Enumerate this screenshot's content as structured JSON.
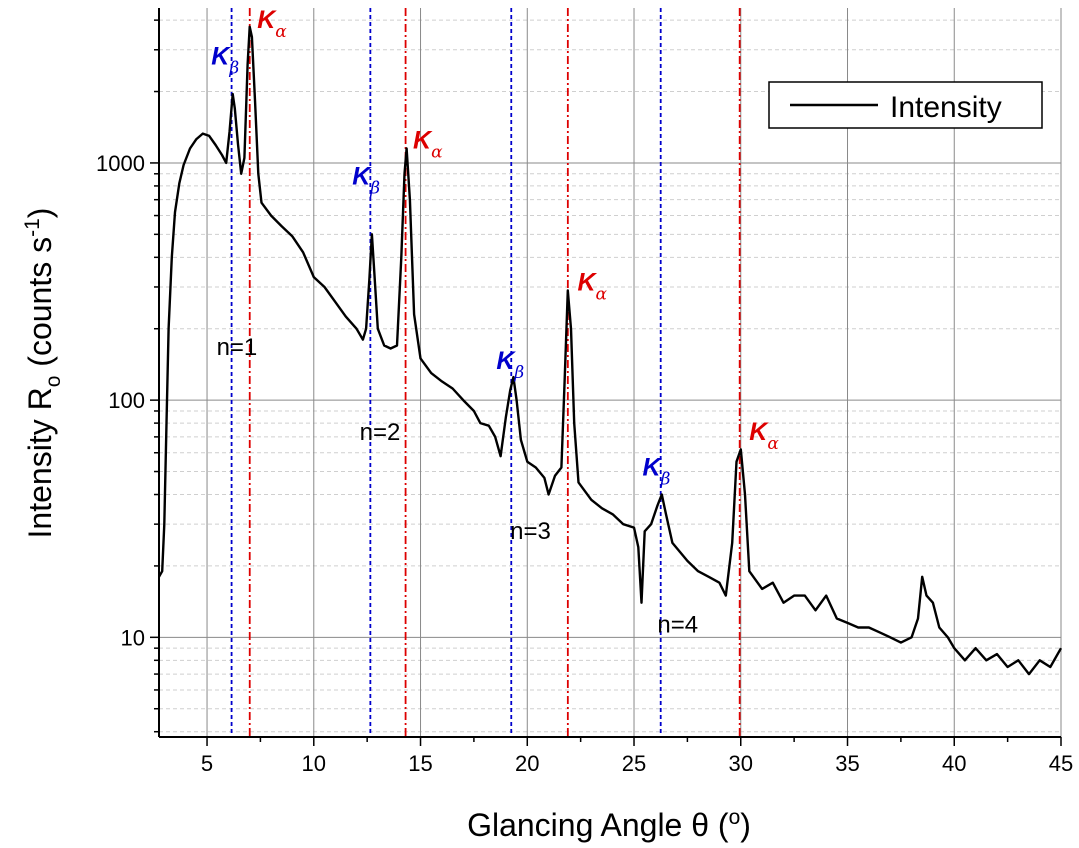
{
  "chart_data": {
    "type": "line",
    "xlabel_main": "Glancing Angle θ (",
    "xlabel_sup": "o",
    "xlabel_end": ")",
    "ylabel_main": "Intensity R",
    "ylabel_sub": "o",
    "ylabel_units": " (counts s",
    "ylabel_sup": "-1",
    "ylabel_end": ")",
    "x_ticks": [
      5,
      10,
      15,
      20,
      25,
      30,
      35,
      40,
      45
    ],
    "x_tick_labels": [
      "5",
      "10",
      "15",
      "20",
      "25",
      "30",
      "35",
      "40",
      "45"
    ],
    "y_ticks": [
      10,
      100,
      1000
    ],
    "y_tick_labels": [
      "10",
      "100",
      "1000"
    ],
    "xlim": [
      2.75,
      45
    ],
    "ylim": [
      3.8,
      4500
    ],
    "y_scale": "log",
    "grid": true,
    "legend": {
      "position": "top-right",
      "entries": [
        "Intensity"
      ]
    },
    "series": [
      {
        "name": "Intensity",
        "color": "#000000",
        "points": [
          [
            2.75,
            18
          ],
          [
            2.9,
            19
          ],
          [
            3.0,
            30
          ],
          [
            3.1,
            80
          ],
          [
            3.2,
            200
          ],
          [
            3.35,
            400
          ],
          [
            3.5,
            620
          ],
          [
            3.7,
            820
          ],
          [
            3.9,
            980
          ],
          [
            4.2,
            1150
          ],
          [
            4.5,
            1260
          ],
          [
            4.8,
            1330
          ],
          [
            5.1,
            1300
          ],
          [
            5.4,
            1190
          ],
          [
            5.7,
            1080
          ],
          [
            5.9,
            1000
          ],
          [
            6.05,
            1350
          ],
          [
            6.2,
            1950
          ],
          [
            6.3,
            1700
          ],
          [
            6.45,
            1200
          ],
          [
            6.6,
            900
          ],
          [
            6.75,
            1050
          ],
          [
            6.9,
            2600
          ],
          [
            7.0,
            3750
          ],
          [
            7.1,
            3400
          ],
          [
            7.25,
            1800
          ],
          [
            7.4,
            900
          ],
          [
            7.55,
            680
          ],
          [
            8.0,
            600
          ],
          [
            8.5,
            540
          ],
          [
            9.0,
            490
          ],
          [
            9.5,
            420
          ],
          [
            10.0,
            330
          ],
          [
            10.5,
            300
          ],
          [
            11.0,
            260
          ],
          [
            11.5,
            225
          ],
          [
            12.0,
            200
          ],
          [
            12.3,
            180
          ],
          [
            12.45,
            200
          ],
          [
            12.6,
            320
          ],
          [
            12.72,
            500
          ],
          [
            12.85,
            330
          ],
          [
            13.0,
            200
          ],
          [
            13.3,
            170
          ],
          [
            13.6,
            165
          ],
          [
            13.9,
            170
          ],
          [
            14.1,
            400
          ],
          [
            14.25,
            900
          ],
          [
            14.35,
            1150
          ],
          [
            14.5,
            700
          ],
          [
            14.7,
            230
          ],
          [
            15.0,
            150
          ],
          [
            15.5,
            130
          ],
          [
            16.0,
            120
          ],
          [
            16.5,
            112
          ],
          [
            17.0,
            100
          ],
          [
            17.5,
            90
          ],
          [
            17.8,
            80
          ],
          [
            18.2,
            78
          ],
          [
            18.5,
            70
          ],
          [
            18.75,
            58
          ],
          [
            19.0,
            85
          ],
          [
            19.2,
            110
          ],
          [
            19.35,
            125
          ],
          [
            19.5,
            100
          ],
          [
            19.7,
            68
          ],
          [
            20.0,
            55
          ],
          [
            20.4,
            52
          ],
          [
            20.8,
            47
          ],
          [
            21.0,
            40
          ],
          [
            21.3,
            48
          ],
          [
            21.6,
            52
          ],
          [
            21.75,
            120
          ],
          [
            21.9,
            290
          ],
          [
            22.05,
            200
          ],
          [
            22.2,
            80
          ],
          [
            22.4,
            45
          ],
          [
            23.0,
            38
          ],
          [
            23.5,
            35
          ],
          [
            24.0,
            33
          ],
          [
            24.5,
            30
          ],
          [
            25.0,
            29
          ],
          [
            25.2,
            24
          ],
          [
            25.35,
            14
          ],
          [
            25.5,
            28
          ],
          [
            25.8,
            30
          ],
          [
            26.1,
            36
          ],
          [
            26.3,
            40
          ],
          [
            26.5,
            33
          ],
          [
            26.8,
            25
          ],
          [
            27.5,
            21
          ],
          [
            28.0,
            19
          ],
          [
            28.5,
            18
          ],
          [
            29.0,
            17
          ],
          [
            29.3,
            15
          ],
          [
            29.6,
            25
          ],
          [
            29.8,
            55
          ],
          [
            30.0,
            62
          ],
          [
            30.2,
            40
          ],
          [
            30.4,
            19
          ],
          [
            31.0,
            16
          ],
          [
            31.5,
            17
          ],
          [
            32.0,
            14
          ],
          [
            32.5,
            15
          ],
          [
            33.0,
            15
          ],
          [
            33.5,
            13
          ],
          [
            34.0,
            15
          ],
          [
            34.5,
            12
          ],
          [
            35.0,
            11.5
          ],
          [
            35.5,
            11
          ],
          [
            36.0,
            11
          ],
          [
            36.5,
            10.5
          ],
          [
            37.0,
            10
          ],
          [
            37.5,
            9.5
          ],
          [
            38.0,
            10
          ],
          [
            38.3,
            12
          ],
          [
            38.5,
            18
          ],
          [
            38.7,
            15
          ],
          [
            39.0,
            14
          ],
          [
            39.3,
            11
          ],
          [
            39.7,
            10
          ],
          [
            40.0,
            9
          ],
          [
            40.5,
            8
          ],
          [
            41.0,
            9
          ],
          [
            41.5,
            8
          ],
          [
            42.0,
            8.5
          ],
          [
            42.5,
            7.5
          ],
          [
            43.0,
            8
          ],
          [
            43.5,
            7
          ],
          [
            44.0,
            8
          ],
          [
            44.5,
            7.5
          ],
          [
            45.0,
            9
          ]
        ]
      }
    ],
    "reference_lines": [
      {
        "kind": "beta",
        "x": 6.15,
        "color": "#0000cc"
      },
      {
        "kind": "alpha",
        "x": 7.0,
        "color": "#dd0000"
      },
      {
        "kind": "beta",
        "x": 12.65,
        "color": "#0000cc"
      },
      {
        "kind": "alpha",
        "x": 14.3,
        "color": "#dd0000"
      },
      {
        "kind": "beta",
        "x": 19.25,
        "color": "#0000cc"
      },
      {
        "kind": "alpha",
        "x": 21.9,
        "color": "#dd0000"
      },
      {
        "kind": "beta",
        "x": 26.25,
        "color": "#0000cc"
      },
      {
        "kind": "alpha",
        "x": 29.95,
        "color": "#dd0000"
      }
    ],
    "peak_labels": [
      {
        "main": "K",
        "sub": "β",
        "color": "#0000cc",
        "x": 5.2,
        "y": 2600
      },
      {
        "main": "K",
        "sub": "α",
        "color": "#dd0000",
        "x": 7.35,
        "y": 3700
      },
      {
        "main": "K",
        "sub": "β",
        "color": "#0000cc",
        "x": 11.8,
        "y": 810
      },
      {
        "main": "K",
        "sub": "α",
        "color": "#dd0000",
        "x": 14.65,
        "y": 1150
      },
      {
        "main": "K",
        "sub": "β",
        "color": "#0000cc",
        "x": 18.55,
        "y": 135
      },
      {
        "main": "K",
        "sub": "α",
        "color": "#dd0000",
        "x": 22.35,
        "y": 290
      },
      {
        "main": "K",
        "sub": "β",
        "color": "#0000cc",
        "x": 25.4,
        "y": 48
      },
      {
        "main": "K",
        "sub": "α",
        "color": "#dd0000",
        "x": 30.4,
        "y": 68
      }
    ],
    "order_labels": [
      {
        "text": "n=1",
        "x": 6.4,
        "y": 155
      },
      {
        "text": "n=2",
        "x": 13.1,
        "y": 68
      },
      {
        "text": "n=3",
        "x": 20.15,
        "y": 26
      },
      {
        "text": "n=4",
        "x": 27.05,
        "y": 10.5
      }
    ]
  }
}
